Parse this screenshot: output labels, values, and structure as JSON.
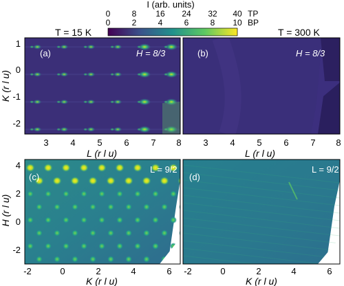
{
  "colorbar": {
    "label": "I (arb. units)",
    "tp_label": "TP",
    "bp_label": "BP",
    "tp_ticks": [
      "0",
      "8",
      "16",
      "24",
      "32",
      "40"
    ],
    "bp_ticks": [
      "0",
      "2",
      "4",
      "6",
      "8",
      "10"
    ],
    "colormap": [
      "#440154",
      "#3b528b",
      "#21918c",
      "#5ec962",
      "#fde725"
    ]
  },
  "temperatures": {
    "left": "T = 15 K",
    "right": "T = 300 K"
  },
  "panels": {
    "a": {
      "label": "(a)",
      "annotation": "H = 8/3"
    },
    "b": {
      "label": "(b)",
      "annotation": "H = 8/3"
    },
    "c": {
      "label": "(c)",
      "annotation": "L = 9/2"
    },
    "d": {
      "label": "(d)",
      "annotation": "L = 9/2"
    }
  },
  "axes": {
    "top_ylabel": "K (r l u)",
    "top_yticks": [
      "1",
      "0",
      "-1",
      "-2"
    ],
    "top_xlabel": "L (r l u)",
    "top_xticks": [
      "3",
      "4",
      "5",
      "6",
      "7",
      "8"
    ],
    "bottom_ylabel": "H (r l u)",
    "bottom_yticks": [
      "4",
      "2",
      "0",
      "-2"
    ],
    "bottom_xlabel": "K (r l u)",
    "bottom_xticks": [
      "-2",
      "0",
      "2",
      "4",
      "6"
    ]
  },
  "chart_data": [
    {
      "type": "heatmap",
      "panel": "a",
      "title": "",
      "xlabel": "L (r l u)",
      "ylabel": "K (r l u)",
      "xlim": [
        2.2,
        8.0
      ],
      "ylim": [
        -2.5,
        1.0
      ],
      "peaks_x": [
        2.67,
        3.67,
        4.67,
        5.67,
        6.67,
        7.67
      ],
      "peaks_y": [
        0.67,
        -0.33,
        -1.33,
        -2.33
      ]
    },
    {
      "type": "heatmap",
      "panel": "b",
      "title": "",
      "xlabel": "L (r l u)",
      "ylabel": "",
      "xlim": [
        2.2,
        8.0
      ],
      "ylim": [
        -2.5,
        1.0
      ]
    },
    {
      "type": "heatmap",
      "panel": "c",
      "title": "",
      "xlabel": "K (r l u)",
      "ylabel": "H (r l u)",
      "xlim": [
        -2.2,
        6.4
      ],
      "ylim": [
        -3.5,
        4.0
      ]
    },
    {
      "type": "heatmap",
      "panel": "d",
      "title": "",
      "xlabel": "K (r l u)",
      "ylabel": "",
      "xlim": [
        -2.2,
        6.4
      ],
      "ylim": [
        -3.5,
        4.0
      ]
    }
  ]
}
